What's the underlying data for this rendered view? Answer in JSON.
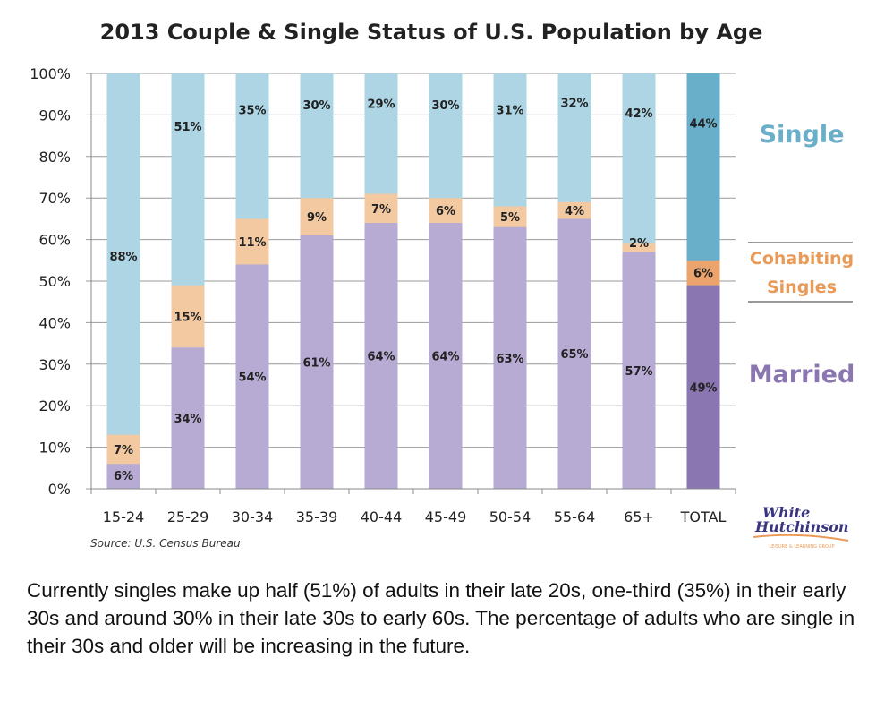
{
  "chart_data": {
    "type": "bar",
    "stacked": true,
    "title": "2013 Couple & Single Status of U.S. Population by Age",
    "categories": [
      "15-24",
      "25-29",
      "30-34",
      "35-39",
      "40-44",
      "45-49",
      "50-54",
      "55-64",
      "65+",
      "TOTAL"
    ],
    "yticks": [
      "0%",
      "10%",
      "20%",
      "30%",
      "40%",
      "50%",
      "60%",
      "70%",
      "80%",
      "90%",
      "100%"
    ],
    "ylim": [
      0,
      100
    ],
    "series": [
      {
        "name": "Married",
        "values": [
          6,
          34,
          54,
          61,
          64,
          64,
          63,
          65,
          57,
          49
        ],
        "labels": [
          "6%",
          "34%",
          "54%",
          "61%",
          "64%",
          "64%",
          "63%",
          "65%",
          "57%",
          "49%"
        ]
      },
      {
        "name": "Cohabiting Singles",
        "values": [
          7,
          15,
          11,
          9,
          7,
          6,
          5,
          4,
          2,
          6
        ],
        "labels": [
          "7%",
          "15%",
          "11%",
          "9%",
          "7%",
          "6%",
          "5%",
          "4%",
          "2%",
          "6%"
        ]
      },
      {
        "name": "Single",
        "values": [
          88,
          51,
          35,
          30,
          29,
          30,
          31,
          32,
          42,
          44
        ],
        "labels": [
          "88%",
          "51%",
          "35%",
          "30%",
          "29%",
          "30%",
          "31%",
          "32%",
          "42%",
          "44%"
        ]
      }
    ],
    "colors": {
      "married": "#b7abd3",
      "cohabiting": "#f2c9a1",
      "single": "#add5e4",
      "total_married": "#8a76b0",
      "total_cohabiting": "#eba46d",
      "total_single": "#6aafc9",
      "legend_single": "#6aafc9",
      "legend_cohabiting": "#e89a58",
      "legend_married": "#8a76b0"
    },
    "legend": {
      "single": "Single",
      "cohabiting_line1": "Cohabiting",
      "cohabiting_line2": "Singles",
      "married": "Married"
    },
    "source": "Source: U.S. Census Bureau",
    "grid": true
  },
  "logo": {
    "line1": "White",
    "line2": "Hutchinson",
    "tagline": "LEISURE & LEARNING GROUP"
  },
  "caption": "Currently singles make up half (51%) of adults in their late 20s, one-third (35%) in their early 30s and around 30% in their late 30s to early 60s. The percentage of adults who are single in their 30s and older will be increasing in the future."
}
